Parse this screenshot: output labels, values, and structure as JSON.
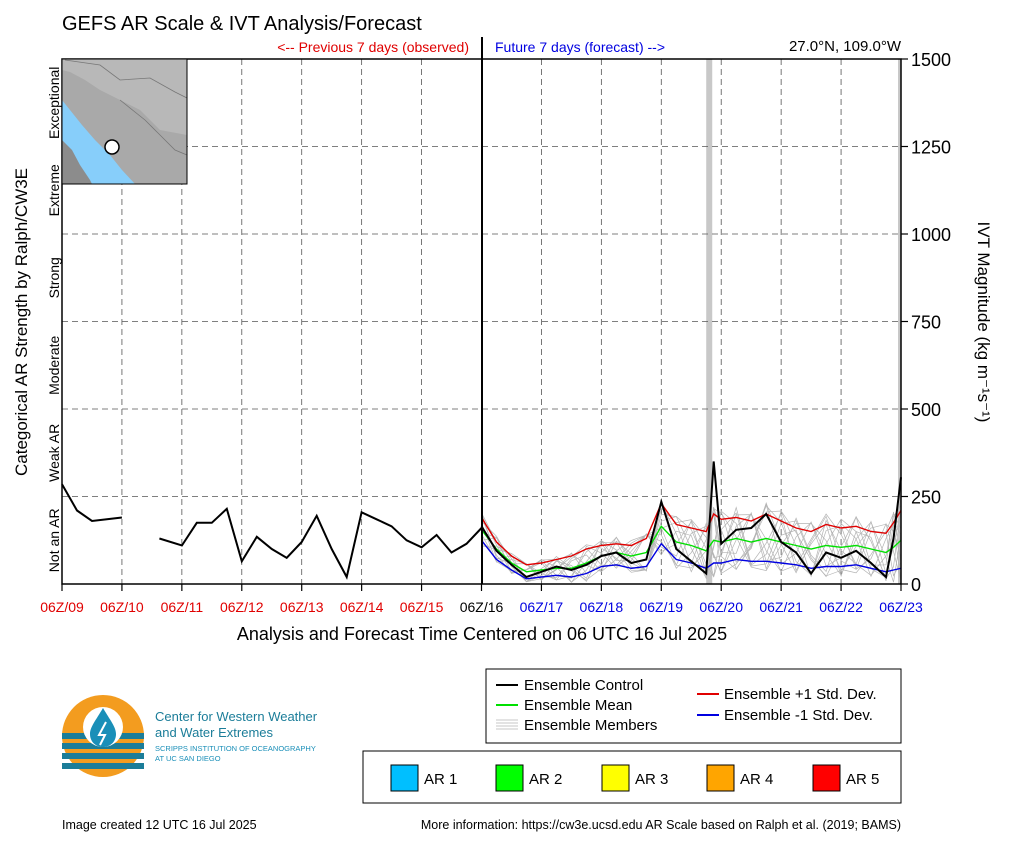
{
  "colors": {
    "observed": "#e00000",
    "forecast": "#0000e0",
    "control": "#000000",
    "mean": "#00e000",
    "plus_sd": "#e00000",
    "minus_sd": "#0000e0",
    "members": "#b4b4b4",
    "ar1": "#00bfff",
    "ar2": "#00ff00",
    "ar3": "#ffff00",
    "ar4": "#ffa500",
    "ar5": "#ff0000",
    "logo_orange": "#f39c1f",
    "logo_blue": "#1a8fb8",
    "logo_teal": "#1b7d99"
  },
  "header": {
    "title": "GEFS AR Scale & IVT Analysis/Forecast",
    "previous_label": "<-- Previous 7 days (observed)",
    "future_label": "Future 7 days (forecast) -->",
    "location": "27.0°N, 109.0°W"
  },
  "chart_data": {
    "type": "line",
    "title": "GEFS AR Scale & IVT Analysis/Forecast",
    "xlabel": "Analysis and Forecast Time Centered on 06 UTC 16 Jul 2025",
    "ylabel_right": "IVT Magnitude (kg m⁻¹s⁻¹)",
    "ylabel_left": "Categorical AR Strength by Ralph/CW3E",
    "ylim": [
      0,
      1500
    ],
    "xlim": [
      0,
      14
    ],
    "x_unit": "days since 06Z/09",
    "yticks": [
      0,
      250,
      500,
      750,
      1000,
      1250,
      1500
    ],
    "ytick_labels": [
      "0",
      "250",
      "500",
      "750",
      "1000",
      "1250",
      "1500"
    ],
    "xtick_labels": [
      "06Z/09",
      "06Z/10",
      "06Z/11",
      "06Z/12",
      "06Z/13",
      "06Z/14",
      "06Z/15",
      "06Z/16",
      "06Z/17",
      "06Z/18",
      "06Z/19",
      "06Z/20",
      "06Z/21",
      "06Z/22",
      "06Z/23"
    ],
    "categories_left": [
      "Not an AR",
      "Weak AR",
      "Moderate",
      "Strong",
      "Extreme",
      "Exceptional"
    ],
    "grid": true,
    "ar_shading": [
      {
        "x0": 10.75,
        "x1": 10.85
      },
      {
        "x0": 13.95,
        "x1": 14.0
      }
    ],
    "observed_segments": [
      {
        "x": [
          0,
          0.25,
          0.5,
          0.75,
          1.0
        ],
        "y": [
          285,
          210,
          180,
          185,
          190
        ]
      },
      {
        "x": [
          1.625,
          2.0,
          2.25,
          2.5,
          2.75,
          3.0,
          3.25,
          3.5,
          3.75,
          4.0,
          4.25,
          4.5,
          4.75,
          5.0,
          5.25,
          5.5,
          5.75,
          6.0,
          6.25,
          6.5,
          6.75,
          7.0
        ],
        "y": [
          130,
          110,
          175,
          175,
          215,
          65,
          135,
          100,
          75,
          120,
          195,
          100,
          20,
          205,
          185,
          165,
          125,
          105,
          140,
          90,
          115,
          160
        ]
      }
    ],
    "series": [
      {
        "name": "Ensemble Control",
        "x": [
          7.0,
          7.25,
          7.5,
          7.75,
          8.0,
          8.25,
          8.5,
          8.75,
          9.0,
          9.25,
          9.5,
          9.75,
          10.0,
          10.25,
          10.5,
          10.75,
          10.875,
          11.0,
          11.25,
          11.5,
          11.75,
          12.0,
          12.25,
          12.5,
          12.75,
          13.0,
          13.25,
          13.5,
          13.75,
          13.875,
          14.0
        ],
        "y": [
          165,
          95,
          55,
          20,
          35,
          50,
          40,
          55,
          80,
          90,
          60,
          70,
          235,
          100,
          65,
          30,
          350,
          115,
          155,
          160,
          200,
          120,
          90,
          30,
          90,
          75,
          95,
          60,
          20,
          130,
          305
        ]
      },
      {
        "name": "Ensemble Mean",
        "x": [
          7.0,
          7.25,
          7.5,
          7.75,
          8.0,
          8.25,
          8.5,
          8.75,
          9.0,
          9.25,
          9.5,
          9.75,
          10.0,
          10.25,
          10.5,
          10.75,
          10.875,
          11.0,
          11.25,
          11.5,
          11.75,
          12.0,
          12.25,
          12.5,
          12.75,
          13.0,
          13.25,
          13.5,
          13.75,
          13.875,
          14.0
        ],
        "y": [
          155,
          100,
          60,
          35,
          40,
          45,
          45,
          60,
          80,
          90,
          80,
          90,
          165,
          120,
          110,
          95,
          125,
          120,
          130,
          120,
          130,
          120,
          110,
          100,
          110,
          105,
          110,
          100,
          90,
          105,
          125
        ]
      },
      {
        "name": "Ensemble +1 Std. Dev.",
        "x": [
          7.0,
          7.25,
          7.5,
          7.75,
          8.0,
          8.25,
          8.5,
          8.75,
          9.0,
          9.25,
          9.5,
          9.75,
          10.0,
          10.25,
          10.5,
          10.75,
          10.875,
          11.0,
          11.25,
          11.5,
          11.75,
          12.0,
          12.25,
          12.5,
          12.75,
          13.0,
          13.25,
          13.5,
          13.75,
          13.875,
          14.0
        ],
        "y": [
          190,
          120,
          80,
          55,
          60,
          70,
          80,
          100,
          110,
          115,
          110,
          130,
          230,
          170,
          160,
          150,
          200,
          185,
          190,
          180,
          200,
          180,
          160,
          150,
          170,
          160,
          165,
          150,
          145,
          175,
          210
        ]
      },
      {
        "name": "Ensemble -1 Std. Dev.",
        "x": [
          7.0,
          7.25,
          7.5,
          7.75,
          8.0,
          8.25,
          8.5,
          8.75,
          9.0,
          9.25,
          9.5,
          9.75,
          10.0,
          10.25,
          10.5,
          10.75,
          10.875,
          11.0,
          11.25,
          11.5,
          11.75,
          12.0,
          12.25,
          12.5,
          12.75,
          13.0,
          13.25,
          13.5,
          13.75,
          13.875,
          14.0
        ],
        "y": [
          125,
          70,
          40,
          15,
          20,
          25,
          20,
          30,
          50,
          55,
          45,
          50,
          115,
          70,
          60,
          45,
          60,
          60,
          70,
          65,
          65,
          60,
          55,
          45,
          50,
          50,
          55,
          45,
          35,
          40,
          45
        ]
      }
    ],
    "members_note_count": 12
  },
  "legend": {
    "control": "Ensemble Control",
    "mean": "Ensemble Mean",
    "members": "Ensemble Members",
    "plus_sd": "Ensemble +1 Std. Dev.",
    "minus_sd": "Ensemble -1 Std. Dev."
  },
  "ar_legend": [
    "AR 1",
    "AR 2",
    "AR 3",
    "AR 4",
    "AR 5"
  ],
  "logo": {
    "line1": "Center for Western Weather",
    "line2": "and Water Extremes",
    "line3": "SCRIPPS INSTITUTION OF OCEANOGRAPHY",
    "line4": "AT UC SAN DIEGO"
  },
  "footer": {
    "created": "Image created 12 UTC 16 Jul 2025",
    "more_info": "More information: https://cw3e.ucsd.edu AR Scale based on Ralph et al. (2019; BAMS)"
  }
}
